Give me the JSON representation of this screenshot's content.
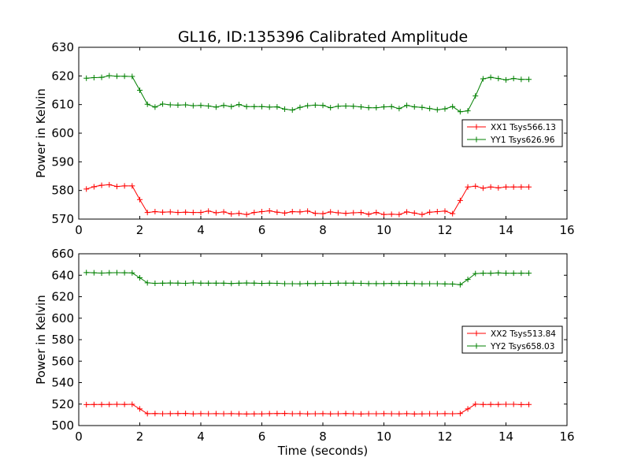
{
  "title": "GL16, ID:135396 Calibrated Amplitude",
  "colors": {
    "xx": "#ff0000",
    "yy": "#008000",
    "axis": "#000000"
  },
  "chart_data": [
    {
      "type": "line",
      "ylabel": "Power in Kelvin",
      "xlabel": "",
      "xlim": [
        0,
        16
      ],
      "ylim": [
        570,
        630
      ],
      "xticks": [
        0,
        2,
        4,
        6,
        8,
        10,
        12,
        14,
        16
      ],
      "yticks": [
        570,
        580,
        590,
        600,
        610,
        620,
        630
      ],
      "legend_position": "right",
      "x": [
        0.25,
        0.5,
        0.75,
        1.0,
        1.25,
        1.5,
        1.75,
        2.0,
        2.25,
        2.5,
        2.75,
        3.0,
        3.25,
        3.5,
        3.75,
        4.0,
        4.25,
        4.5,
        4.75,
        5.0,
        5.25,
        5.5,
        5.75,
        6.0,
        6.25,
        6.5,
        6.75,
        7.0,
        7.25,
        7.5,
        7.75,
        8.0,
        8.25,
        8.5,
        8.75,
        9.0,
        9.25,
        9.5,
        9.75,
        10.0,
        10.25,
        10.5,
        10.75,
        11.0,
        11.25,
        11.5,
        11.75,
        12.0,
        12.25,
        12.5,
        12.75,
        13.0,
        13.25,
        13.5,
        13.75,
        14.0,
        14.25,
        14.5,
        14.75
      ],
      "series": [
        {
          "name": "XX1 Tsys566.13",
          "color": "#ff0000",
          "values": [
            580.5,
            581.3,
            581.8,
            582.0,
            581.4,
            581.6,
            581.6,
            576.8,
            572.3,
            572.6,
            572.4,
            572.5,
            572.3,
            572.4,
            572.3,
            572.3,
            572.8,
            572.2,
            572.5,
            571.8,
            572.0,
            571.6,
            572.3,
            572.6,
            572.9,
            572.4,
            572.1,
            572.6,
            572.5,
            572.8,
            572.0,
            571.9,
            572.5,
            572.2,
            572.0,
            572.2,
            572.3,
            571.7,
            572.3,
            571.6,
            571.7,
            571.6,
            572.5,
            572.1,
            571.6,
            572.4,
            572.6,
            572.8,
            571.9,
            576.5,
            581.2,
            581.5,
            580.8,
            581.2,
            580.9,
            581.2,
            581.2,
            581.2,
            581.2
          ]
        },
        {
          "name": "YY1 Tsys626.96",
          "color": "#008000",
          "values": [
            619.2,
            619.4,
            619.5,
            620.1,
            619.9,
            619.9,
            619.8,
            615.0,
            610.1,
            609.1,
            610.2,
            609.9,
            609.8,
            609.9,
            609.6,
            609.7,
            609.5,
            609.1,
            609.7,
            609.3,
            610.0,
            609.3,
            609.3,
            609.3,
            609.1,
            609.2,
            608.4,
            608.1,
            609.0,
            609.6,
            609.8,
            609.7,
            608.9,
            609.4,
            609.5,
            609.4,
            609.2,
            608.9,
            608.9,
            609.2,
            609.3,
            608.6,
            609.7,
            609.2,
            609.0,
            608.6,
            608.2,
            608.5,
            609.3,
            607.5,
            607.8,
            613.0,
            619.0,
            619.5,
            619.1,
            618.6,
            619.1,
            618.8,
            618.8
          ]
        }
      ]
    },
    {
      "type": "line",
      "ylabel": "Power in Kelvin",
      "xlabel": "Time (seconds)",
      "xlim": [
        0,
        16
      ],
      "ylim": [
        500,
        660
      ],
      "xticks": [
        0,
        2,
        4,
        6,
        8,
        10,
        12,
        14,
        16
      ],
      "yticks": [
        500,
        520,
        540,
        560,
        580,
        600,
        620,
        640,
        660
      ],
      "legend_position": "right",
      "x": [
        0.25,
        0.5,
        0.75,
        1.0,
        1.25,
        1.5,
        1.75,
        2.0,
        2.25,
        2.5,
        2.75,
        3.0,
        3.25,
        3.5,
        3.75,
        4.0,
        4.25,
        4.5,
        4.75,
        5.0,
        5.25,
        5.5,
        5.75,
        6.0,
        6.25,
        6.5,
        6.75,
        7.0,
        7.25,
        7.5,
        7.75,
        8.0,
        8.25,
        8.5,
        8.75,
        9.0,
        9.25,
        9.5,
        9.75,
        10.0,
        10.25,
        10.5,
        10.75,
        11.0,
        11.25,
        11.5,
        11.75,
        12.0,
        12.25,
        12.5,
        12.75,
        13.0,
        13.25,
        13.5,
        13.75,
        14.0,
        14.25,
        14.5,
        14.75
      ],
      "series": [
        {
          "name": "XX2 Tsys513.84",
          "color": "#ff0000",
          "values": [
            519.5,
            519.6,
            519.6,
            519.7,
            519.8,
            519.7,
            519.8,
            515.5,
            511.1,
            511.2,
            511.0,
            511.1,
            511.2,
            511.3,
            510.9,
            511.1,
            511.0,
            511.1,
            511.0,
            511.1,
            510.9,
            510.8,
            510.9,
            510.9,
            511.1,
            511.2,
            511.3,
            511.0,
            511.1,
            510.9,
            511.0,
            511.1,
            510.9,
            511.0,
            511.2,
            511.0,
            510.8,
            511.0,
            511.0,
            511.1,
            511.0,
            510.9,
            511.1,
            510.8,
            510.9,
            511.0,
            511.0,
            511.1,
            511.0,
            511.2,
            515.5,
            519.9,
            519.6,
            519.7,
            519.7,
            519.8,
            519.8,
            519.5,
            519.6
          ],
          "values_note_removed": true
        },
        {
          "name": "YY2 Tsys658.03",
          "color": "#008000",
          "values": [
            642.5,
            642.3,
            642.0,
            642.3,
            642.4,
            642.3,
            642.2,
            637.6,
            632.9,
            632.5,
            632.6,
            632.8,
            632.7,
            632.5,
            632.9,
            632.6,
            632.6,
            632.6,
            632.6,
            632.3,
            632.6,
            632.8,
            632.7,
            632.4,
            632.6,
            632.5,
            632.1,
            632.1,
            632.0,
            632.3,
            632.2,
            632.5,
            632.4,
            632.6,
            632.6,
            632.6,
            632.5,
            632.2,
            632.2,
            632.2,
            632.4,
            632.3,
            632.4,
            632.2,
            632.0,
            632.1,
            632.1,
            631.9,
            631.8,
            631.2,
            636.1,
            641.6,
            641.9,
            641.8,
            642.2,
            641.9,
            641.9,
            641.9,
            641.9
          ]
        }
      ]
    }
  ]
}
